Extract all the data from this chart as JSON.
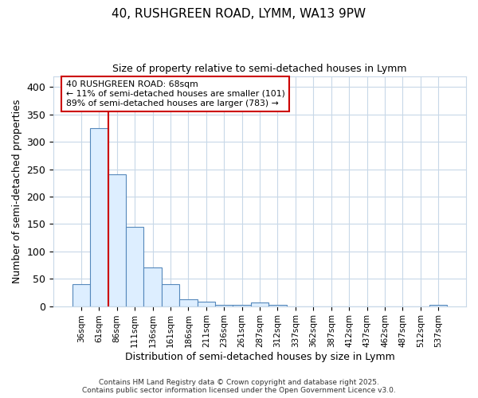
{
  "title1": "40, RUSHGREEN ROAD, LYMM, WA13 9PW",
  "title2": "Size of property relative to semi-detached houses in Lymm",
  "xlabel": "Distribution of semi-detached houses by size in Lymm",
  "ylabel": "Number of semi-detached properties",
  "bin_labels": [
    "36sqm",
    "61sqm",
    "86sqm",
    "111sqm",
    "136sqm",
    "161sqm",
    "186sqm",
    "211sqm",
    "236sqm",
    "261sqm",
    "287sqm",
    "312sqm",
    "337sqm",
    "362sqm",
    "387sqm",
    "412sqm",
    "437sqm",
    "462sqm",
    "487sqm",
    "512sqm",
    "537sqm"
  ],
  "bar_values": [
    40,
    325,
    240,
    145,
    70,
    40,
    12,
    8,
    3,
    3,
    6,
    3,
    0,
    0,
    0,
    0,
    0,
    0,
    0,
    0,
    2
  ],
  "bar_color": "#ddeeff",
  "bar_edgecolor": "#5588bb",
  "ylim": [
    0,
    420
  ],
  "yticks": [
    0,
    50,
    100,
    150,
    200,
    250,
    300,
    350,
    400
  ],
  "vline_x": 1.5,
  "vline_color": "#cc0000",
  "annotation_title": "40 RUSHGREEN ROAD: 68sqm",
  "annotation_line1": "← 11% of semi-detached houses are smaller (101)",
  "annotation_line2": "89% of semi-detached houses are larger (783) →",
  "annotation_box_color": "#cc0000",
  "footer1": "Contains HM Land Registry data © Crown copyright and database right 2025.",
  "footer2": "Contains public sector information licensed under the Open Government Licence v3.0.",
  "bg_color": "#ffffff",
  "plot_bg_color": "#ffffff",
  "grid_color": "#c8d8e8"
}
